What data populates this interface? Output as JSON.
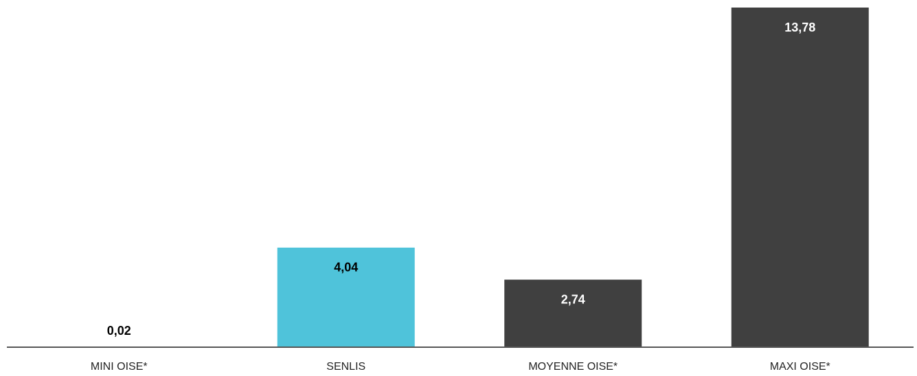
{
  "chart_data": {
    "type": "bar",
    "categories": [
      "MINI OISE*",
      "SENLIS",
      "MOYENNE OISE*",
      "MAXI OISE*"
    ],
    "values": [
      0.02,
      4.04,
      2.74,
      13.78
    ],
    "value_labels": [
      "0,02",
      "4,04",
      "2,74",
      "13,78"
    ],
    "colors": [
      "#404040",
      "#4fc3da",
      "#404040",
      "#404040"
    ]
  }
}
